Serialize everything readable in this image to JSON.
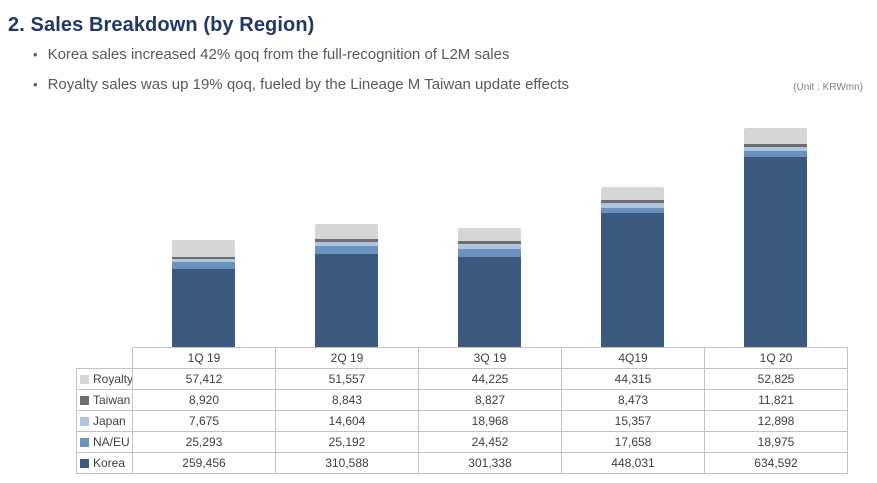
{
  "page": {
    "title": "2. Sales Breakdown (by Region)",
    "bullets": [
      "Korea sales increased 42% qoq from the full-recognition of L2M sales",
      "Royalty sales was up 19% qoq, fueled by the Lineage M Taiwan update effects"
    ],
    "unit_note": "(Unit : KRWmn)"
  },
  "colors": {
    "title_text": "#1f3864",
    "bullet_text": "#595959",
    "table_border": "#c3c3c3",
    "table_text": "#404040"
  },
  "chart_data": {
    "type": "bar",
    "stacked": true,
    "title": "Sales Breakdown (by Region)",
    "unit": "KRWmn",
    "legend_position": "table-left",
    "categories": [
      "1Q 19",
      "2Q 19",
      "3Q 19",
      "4Q19",
      "1Q 20"
    ],
    "series": [
      {
        "name": "Korea",
        "color": "#3c5a7f",
        "values": [
          259456,
          310588,
          301338,
          448031,
          634592
        ]
      },
      {
        "name": "NA/EU",
        "color": "#6b91bd",
        "values": [
          25293,
          25192,
          24452,
          17658,
          18975
        ]
      },
      {
        "name": "Japan",
        "color": "#aec5e0",
        "values": [
          7675,
          14604,
          18968,
          15357,
          12898
        ]
      },
      {
        "name": "Taiwan",
        "color": "#6e6e6e",
        "values": [
          8920,
          8843,
          8827,
          8473,
          11821
        ]
      },
      {
        "name": "Royalty",
        "color": "#d6d6d6",
        "values": [
          57412,
          51557,
          44225,
          44315,
          52825
        ]
      }
    ],
    "stack_order_bottom_to_top": [
      "Korea",
      "NA/EU",
      "Japan",
      "Taiwan",
      "Royalty"
    ],
    "table_row_order": [
      "Royalty",
      "Taiwan",
      "Japan",
      "NA/EU",
      "Korea"
    ],
    "value_format": "thousands-comma"
  }
}
